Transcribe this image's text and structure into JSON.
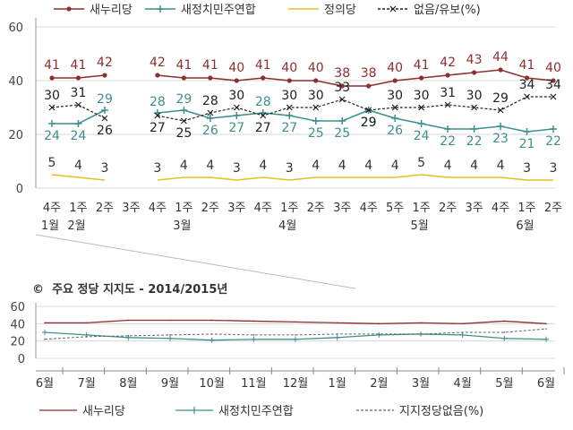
{
  "chart_data": [
    {
      "type": "line",
      "ylim": [
        0,
        60
      ],
      "yticks": [
        0,
        20,
        40,
        60
      ],
      "grid": true,
      "legend": "top",
      "x": [
        "4주|1월",
        "1주|2월",
        "2주",
        "3주",
        "4주",
        "1주|3월",
        "2주",
        "3주",
        "4주",
        "1주|4월",
        "2주",
        "3주",
        "4주",
        "5주",
        "1주|5월",
        "2주",
        "3주",
        "4주",
        "1주|6월",
        "2주"
      ],
      "series": [
        {
          "name": "새누리당",
          "color": "#8b2f2f",
          "values": [
            41,
            41,
            42,
            null,
            42,
            41,
            41,
            40,
            41,
            40,
            40,
            38,
            38,
            40,
            41,
            42,
            43,
            44,
            41,
            40
          ]
        },
        {
          "name": "새정치민주연합",
          "color": "#3d8f8f",
          "values": [
            24,
            24,
            29,
            null,
            28,
            29,
            26,
            27,
            28,
            27,
            25,
            25,
            29,
            26,
            24,
            22,
            22,
            23,
            21,
            22
          ]
        },
        {
          "name": "정의당",
          "color": "#e6c020",
          "values": [
            5,
            4,
            3,
            null,
            3,
            4,
            4,
            3,
            4,
            3,
            4,
            4,
            4,
            4,
            5,
            4,
            4,
            4,
            3,
            3
          ]
        },
        {
          "name": "없음/유보(%)",
          "color": "#222222",
          "dashed": true,
          "values": [
            30,
            31,
            26,
            null,
            27,
            25,
            28,
            30,
            27,
            30,
            30,
            33,
            29,
            30,
            30,
            31,
            30,
            29,
            34,
            34
          ]
        }
      ]
    },
    {
      "type": "line",
      "title": "주요 정당 지지도 - 2014/2015년",
      "ylim": [
        0,
        60
      ],
      "yticks": [
        0,
        20,
        40,
        60
      ],
      "grid": true,
      "legend": "bottom",
      "x": [
        "6월",
        "7월",
        "8월",
        "9월",
        "10월",
        "11월",
        "12월",
        "1월",
        "2월",
        "3월",
        "4월",
        "5월",
        "6월"
      ],
      "highlight": [
        "1월",
        "6월"
      ],
      "series": [
        {
          "name": "새누리당",
          "color": "#8b2f2f",
          "values": [
            41,
            41,
            44,
            44,
            44,
            43,
            42,
            41,
            40,
            41,
            40,
            43,
            40
          ]
        },
        {
          "name": "새정치민주연합",
          "color": "#3d8f8f",
          "values": [
            30,
            27,
            24,
            23,
            21,
            22,
            22,
            24,
            27,
            28,
            27,
            23,
            22
          ]
        },
        {
          "name": "지지정당없음(%)",
          "color": "#666666",
          "dashed": true,
          "values": [
            22,
            25,
            26,
            27,
            28,
            27,
            27,
            28,
            28,
            28,
            30,
            30,
            34
          ]
        }
      ]
    }
  ]
}
